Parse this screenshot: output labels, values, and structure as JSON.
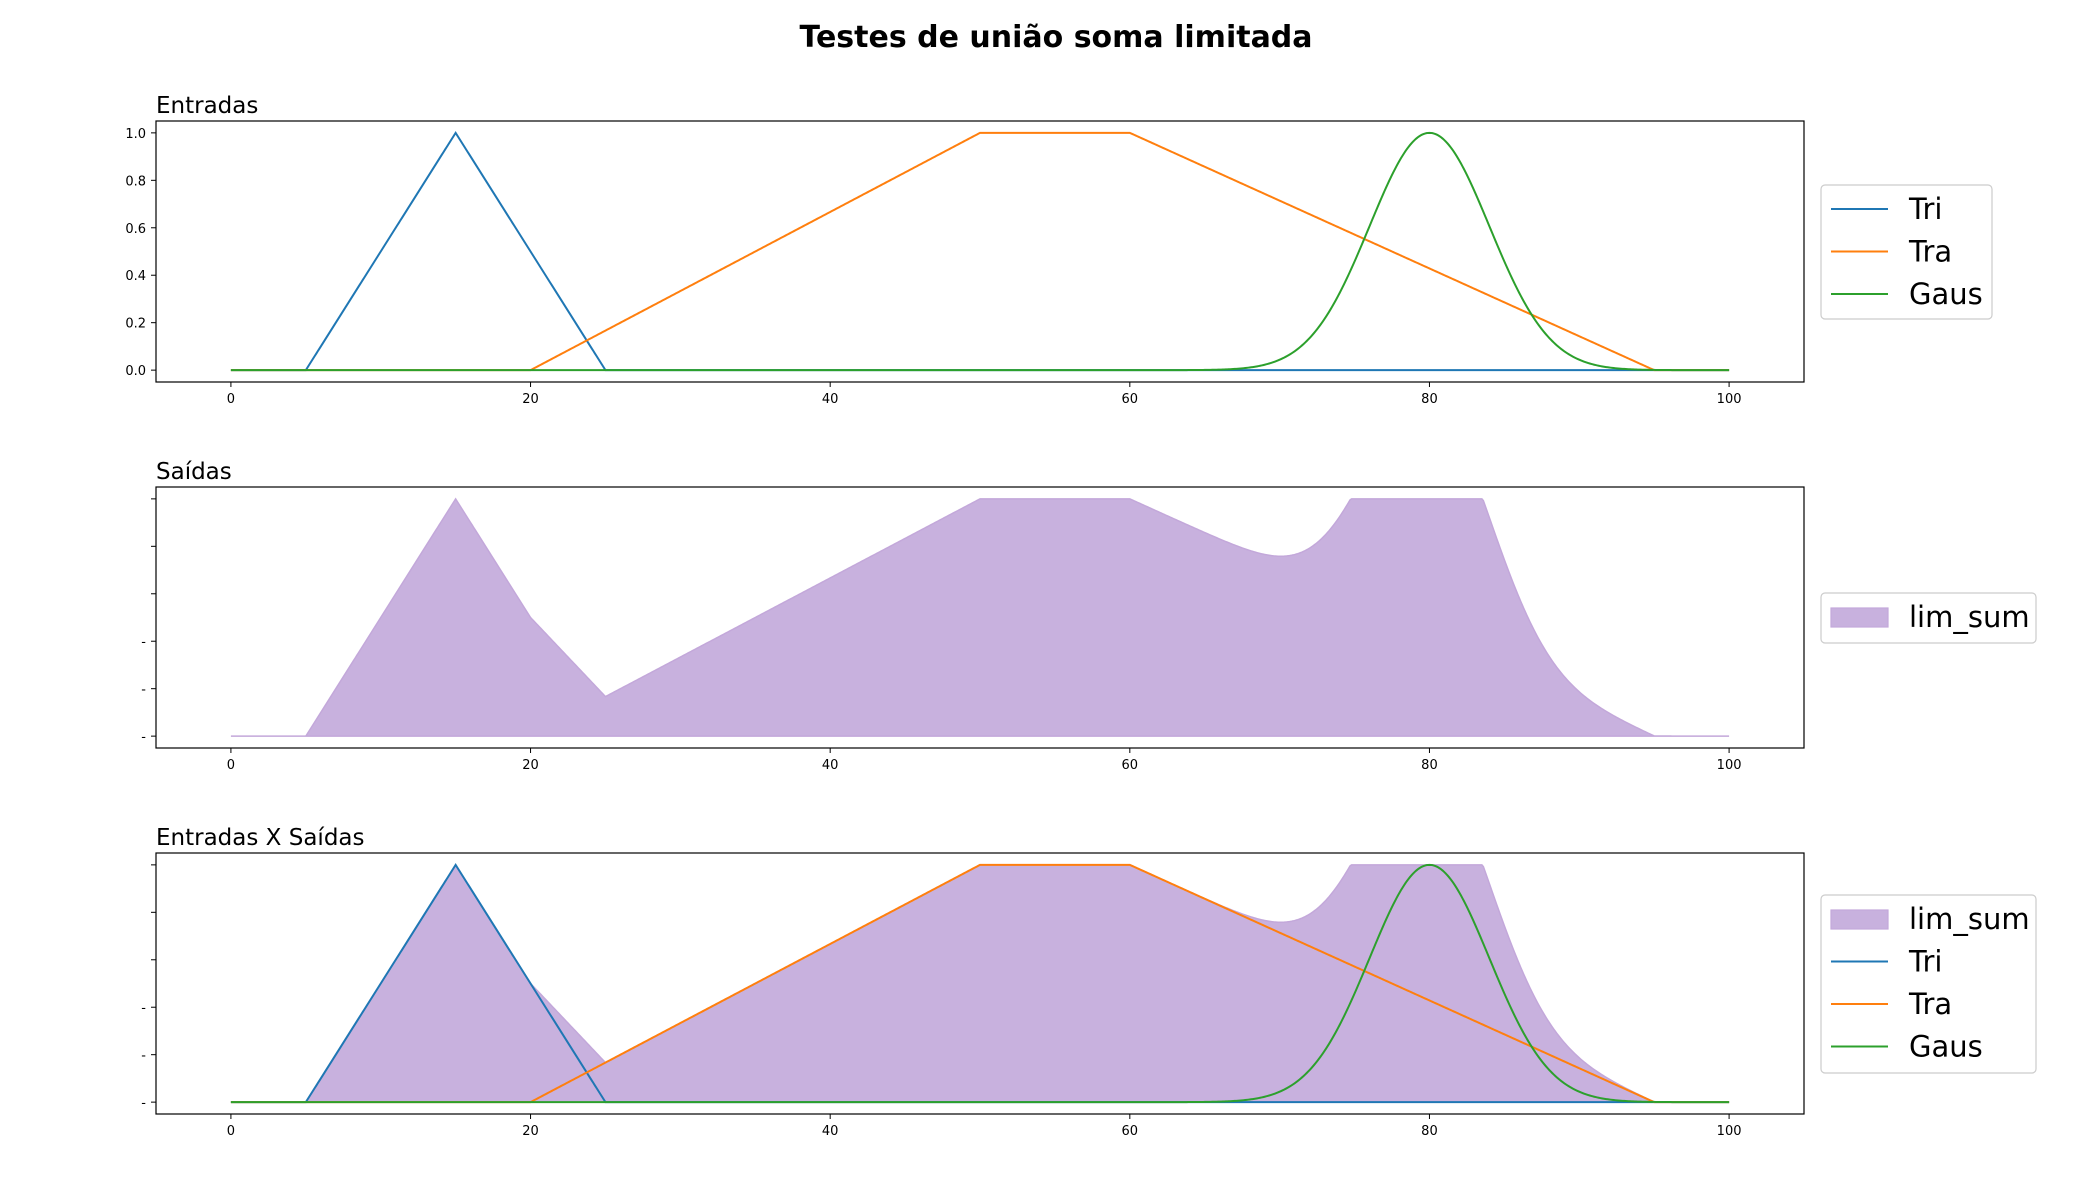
{
  "figure": {
    "suptitle": "Testes de união soma limitada"
  },
  "colors": {
    "tri": "#1f77b4",
    "tra": "#ff7f0e",
    "gaus": "#2ca02c",
    "lim_sum_fill": "#c8b1de",
    "lim_sum_edge": "#c3a8da"
  },
  "chart_data": [
    {
      "type": "line",
      "title": "Entradas",
      "xlim": [
        -5,
        105
      ],
      "ylim": [
        -0.05,
        1.05
      ],
      "xticks": [
        0,
        20,
        40,
        60,
        80,
        100
      ],
      "xtick_labels": [
        "0",
        "20",
        "40",
        "60",
        "80",
        "100"
      ],
      "yticks": [
        0.0,
        0.2,
        0.4,
        0.6,
        0.8,
        1.0
      ],
      "ytick_labels": [
        "0.0",
        "0.2",
        "0.4",
        "0.6",
        "0.8",
        "1.0"
      ],
      "legend_position": "right",
      "series": [
        {
          "name": "Tri",
          "kind": "line",
          "color_key": "tri",
          "shape": "triangular",
          "params": [
            5,
            15,
            25
          ]
        },
        {
          "name": "Tra",
          "kind": "line",
          "color_key": "tra",
          "shape": "trapezoidal",
          "params": [
            20,
            50,
            60,
            95
          ]
        },
        {
          "name": "Gaus",
          "kind": "line",
          "color_key": "gaus",
          "shape": "gaussian",
          "params": [
            80,
            4
          ]
        }
      ]
    },
    {
      "type": "area",
      "title": "Saídas",
      "xlim": [
        -5,
        105
      ],
      "ylim": [
        -0.05,
        1.05
      ],
      "xticks": [
        0,
        20,
        40,
        60,
        80,
        100
      ],
      "xtick_labels": [
        "0",
        "20",
        "40",
        "60",
        "80",
        "100"
      ],
      "yticks": [
        0.0,
        0.2,
        0.4,
        0.6,
        0.8,
        1.0
      ],
      "ytick_labels": [
        "-",
        "-",
        "-",
        "",
        "",
        ""
      ],
      "legend_position": "right",
      "series": [
        {
          "name": "lim_sum",
          "kind": "area",
          "color_key": "lim_sum_fill",
          "shape": "bounded_sum",
          "params": []
        }
      ]
    },
    {
      "type": "area",
      "title": "Entradas X Saídas",
      "xlim": [
        -5,
        105
      ],
      "ylim": [
        -0.05,
        1.05
      ],
      "xticks": [
        0,
        20,
        40,
        60,
        80,
        100
      ],
      "xtick_labels": [
        "0",
        "20",
        "40",
        "60",
        "80",
        "100"
      ],
      "yticks": [
        0.0,
        0.2,
        0.4,
        0.6,
        0.8,
        1.0
      ],
      "ytick_labels": [
        "-",
        "-",
        "-",
        "",
        "",
        ""
      ],
      "legend_position": "right",
      "series": [
        {
          "name": "lim_sum",
          "kind": "area",
          "color_key": "lim_sum_fill",
          "shape": "bounded_sum",
          "params": []
        },
        {
          "name": "Tri",
          "kind": "line",
          "color_key": "tri",
          "shape": "triangular",
          "params": [
            5,
            15,
            25
          ]
        },
        {
          "name": "Tra",
          "kind": "line",
          "color_key": "tra",
          "shape": "trapezoidal",
          "params": [
            20,
            50,
            60,
            95
          ]
        },
        {
          "name": "Gaus",
          "kind": "line",
          "color_key": "gaus",
          "shape": "gaussian",
          "params": [
            80,
            4
          ]
        }
      ]
    }
  ]
}
